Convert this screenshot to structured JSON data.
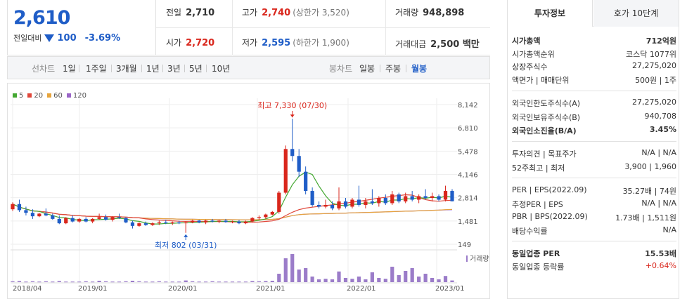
{
  "header": {
    "price": "2,610",
    "change_label": "전일대비",
    "change_value": "100",
    "change_pct": "-3.69%",
    "prev_close_label": "전일",
    "prev_close": "2,710",
    "high_label": "고가",
    "high": "2,740",
    "upper_limit": "(상한가 3,520)",
    "volume_label": "거래량",
    "volume": "948,898",
    "open_label": "시가",
    "open": "2,720",
    "low_label": "저가",
    "low": "2,595",
    "lower_limit": "(하한가 1,900)",
    "amount_label": "거래대금",
    "amount": "2,500 백만"
  },
  "tabs": {
    "line_label": "선차트",
    "line": [
      "1일",
      "1주일",
      "3개월",
      "1년",
      "3년",
      "5년",
      "10년"
    ],
    "candle_label": "봉차트",
    "candle": [
      "일봉",
      "주봉",
      "월봉"
    ],
    "selected": "월봉"
  },
  "right": {
    "tab_active": "투자정보",
    "tab_inactive": "호가 10단계",
    "rows1": [
      {
        "k": "시가총액",
        "v": "712억원"
      },
      {
        "k": "시가총액순위",
        "v": "코스닥 1077위"
      },
      {
        "k": "상장주식수",
        "v": "27,275,020"
      },
      {
        "k": "액면가 | 매매단위",
        "v": "500원 | 1주"
      }
    ],
    "rows2": [
      {
        "k": "외국인한도주식수(A)",
        "v": "27,275,020"
      },
      {
        "k": "외국인보유주식수(B)",
        "v": "940,708"
      },
      {
        "k": "외국인소진율(B/A)",
        "v": "3.45%"
      }
    ],
    "rows3": [
      {
        "k": "투자의견 | 목표주가",
        "v": "N/A | N/A"
      },
      {
        "k": "52주최고 | 최저",
        "v": "3,900 | 1,960"
      }
    ],
    "rows4": [
      {
        "k": "PER | EPS(2022.09)",
        "v": "35.27배 | 74원"
      },
      {
        "k": "추정PER | EPS",
        "v": "N/A | N/A"
      },
      {
        "k": "PBR | BPS(2022.09)",
        "v": "1.73배 | 1,511원"
      },
      {
        "k": "배당수익률",
        "v": "N/A"
      }
    ],
    "rows5": [
      {
        "k": "동일업종 PER",
        "v": "15.53배"
      },
      {
        "k": "동일업종 등락률",
        "v": "+0.64%"
      }
    ]
  },
  "colors": {
    "up": "#d9261c",
    "down": "#1f5dc7",
    "ma5": "#44a832",
    "ma20": "#e0473a",
    "ma60": "#e7a43c",
    "ma120": "#9b66c8",
    "volume": "#9b7cc9"
  },
  "chart_data": {
    "type": "candlestick",
    "legend": [
      "5",
      "20",
      "60",
      "120"
    ],
    "y_ticks": [
      "8,142",
      "6,810",
      "5,478",
      "4,146",
      "2,814",
      "1,481",
      "149"
    ],
    "y_tick_values": [
      8142,
      6810,
      5478,
      4146,
      2814,
      1481,
      149
    ],
    "ylim": [
      149,
      8142
    ],
    "x_ticks": [
      "2018/04",
      "2019/01",
      "2020/01",
      "2021/01",
      "2022/01",
      "2023/01"
    ],
    "volume_label": "거래량",
    "annotation_high": "최고 7,330 (07/30)",
    "annotation_low": "최저 802 (03/31)",
    "candles": [
      [
        2150,
        2550,
        2050,
        2450
      ],
      [
        2450,
        2700,
        2000,
        2100
      ],
      [
        2100,
        2300,
        1800,
        1950
      ],
      [
        1950,
        2150,
        1600,
        1750
      ],
      [
        1750,
        1950,
        1700,
        1900
      ],
      [
        1900,
        2200,
        1750,
        1800
      ],
      [
        1800,
        1900,
        1550,
        1600
      ],
      [
        1600,
        1800,
        1300,
        1350
      ],
      [
        1350,
        1700,
        1300,
        1650
      ],
      [
        1650,
        1800,
        1400,
        1450
      ],
      [
        1450,
        1650,
        1380,
        1600
      ],
      [
        1600,
        1700,
        1400,
        1450
      ],
      [
        1450,
        1650,
        1350,
        1600
      ],
      [
        1600,
        1900,
        1550,
        1700
      ],
      [
        1700,
        1850,
        1500,
        1550
      ],
      [
        1550,
        1750,
        1450,
        1700
      ],
      [
        1700,
        1900,
        1600,
        1650
      ],
      [
        1650,
        1700,
        1350,
        1400
      ],
      [
        1400,
        1500,
        1050,
        1200
      ],
      [
        1200,
        1400,
        1150,
        1350
      ],
      [
        1350,
        1450,
        1200,
        1250
      ],
      [
        1250,
        1400,
        1200,
        1350
      ],
      [
        1350,
        1500,
        1250,
        1400
      ],
      [
        1400,
        1550,
        1300,
        1350
      ],
      [
        1350,
        1450,
        1250,
        1400
      ],
      [
        1400,
        1500,
        1300,
        1350
      ],
      [
        1350,
        1450,
        802,
        1400
      ],
      [
        1400,
        1550,
        1350,
        1500
      ],
      [
        1500,
        1550,
        1350,
        1400
      ],
      [
        1400,
        1550,
        1300,
        1500
      ],
      [
        1500,
        1600,
        1400,
        1450
      ],
      [
        1450,
        1550,
        1350,
        1500
      ],
      [
        1500,
        1600,
        1380,
        1420
      ],
      [
        1420,
        1500,
        1350,
        1450
      ],
      [
        1450,
        1550,
        1300,
        1350
      ],
      [
        1350,
        1500,
        1300,
        1450
      ],
      [
        1450,
        1700,
        1400,
        1650
      ],
      [
        1650,
        1800,
        1550,
        1700
      ],
      [
        1700,
        1900,
        1600,
        1850
      ],
      [
        1850,
        2050,
        1800,
        2000
      ],
      [
        2000,
        3200,
        1900,
        3100
      ],
      [
        3100,
        5800,
        3000,
        5600
      ],
      [
        5600,
        7330,
        4900,
        5200
      ],
      [
        5200,
        5600,
        4000,
        4300
      ],
      [
        4300,
        4600,
        3000,
        3200
      ],
      [
        3200,
        3400,
        2300,
        2400
      ],
      [
        2400,
        2600,
        2200,
        2300
      ],
      [
        2300,
        2700,
        2200,
        2400
      ],
      [
        2400,
        2600,
        2100,
        2200
      ],
      [
        2200,
        3400,
        2100,
        2600
      ],
      [
        2600,
        2800,
        2200,
        2300
      ],
      [
        2300,
        2800,
        2200,
        2700
      ],
      [
        2700,
        3500,
        2300,
        2400
      ],
      [
        2400,
        2800,
        2200,
        2600
      ],
      [
        2600,
        3300,
        2400,
        2500
      ],
      [
        2500,
        2900,
        2300,
        2800
      ],
      [
        2800,
        3000,
        2400,
        2500
      ],
      [
        2500,
        3200,
        2400,
        3000
      ],
      [
        3000,
        3100,
        2500,
        2600
      ],
      [
        2600,
        3100,
        2500,
        2900
      ],
      [
        2900,
        3200,
        2600,
        2700
      ],
      [
        2700,
        3000,
        2500,
        2900
      ],
      [
        2900,
        3300,
        2700,
        2800
      ],
      [
        2800,
        3100,
        2600,
        2900
      ],
      [
        2900,
        3000,
        2600,
        2700
      ],
      [
        2700,
        3500,
        2600,
        3200
      ],
      [
        3200,
        3300,
        2600,
        2610
      ]
    ],
    "volume": [
      0.03,
      0.04,
      0.02,
      0.03,
      0.02,
      0.03,
      0.02,
      0.04,
      0.02,
      0.02,
      0.02,
      0.03,
      0.02,
      0.05,
      0.03,
      0.02,
      0.02,
      0.03,
      0.05,
      0.03,
      0.02,
      0.02,
      0.03,
      0.02,
      0.02,
      0.02,
      0.06,
      0.03,
      0.02,
      0.02,
      0.03,
      0.02,
      0.02,
      0.02,
      0.02,
      0.02,
      0.04,
      0.03,
      0.04,
      0.05,
      0.3,
      0.85,
      1.0,
      0.45,
      0.5,
      0.2,
      0.1,
      0.12,
      0.1,
      0.38,
      0.15,
      0.12,
      0.2,
      0.1,
      0.35,
      0.15,
      0.12,
      0.55,
      0.25,
      0.4,
      0.5,
      0.2,
      0.3,
      0.15,
      0.1,
      0.22,
      0.06
    ]
  }
}
